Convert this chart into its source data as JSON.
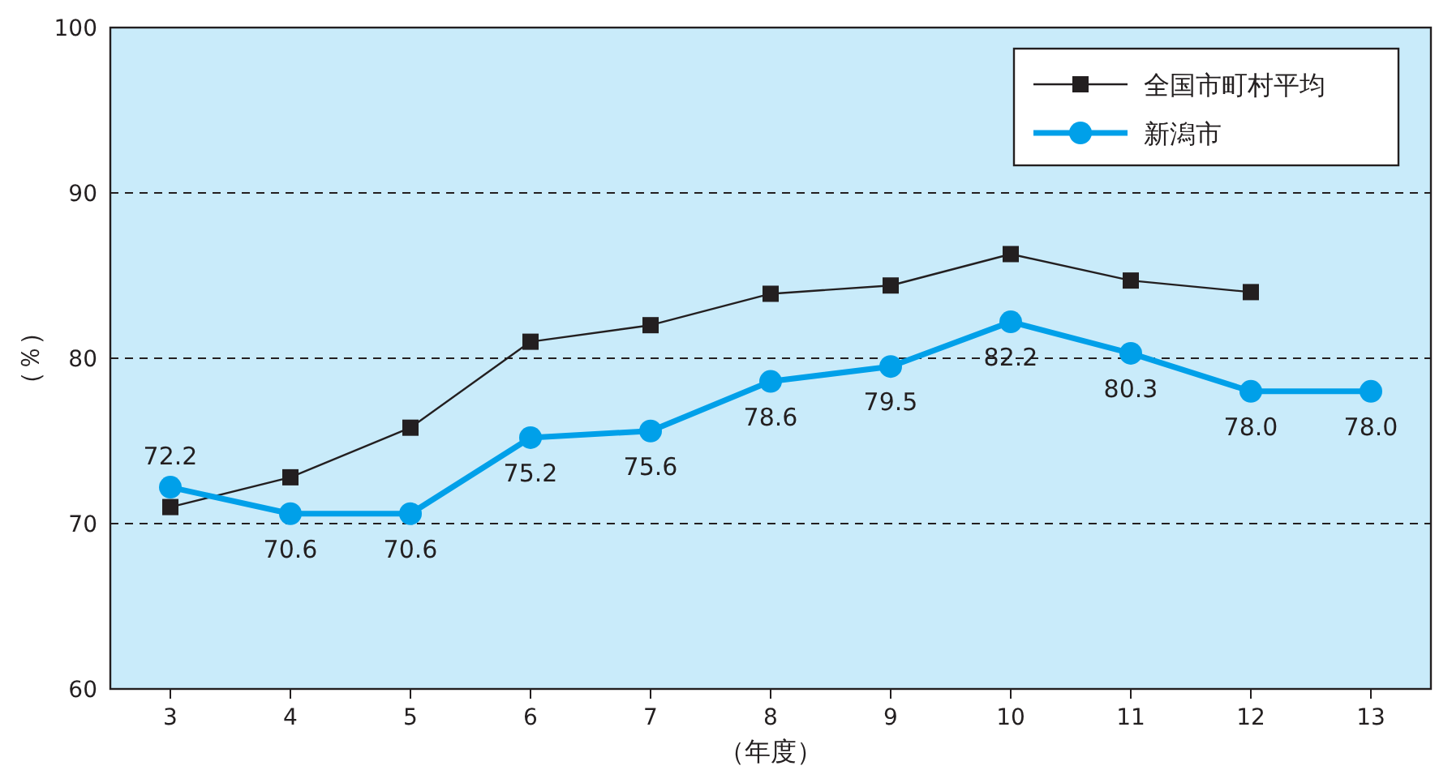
{
  "chart_data": {
    "type": "line",
    "xlabel": "（年度）",
    "ylabel": "（％）",
    "x": [
      3,
      4,
      5,
      6,
      7,
      8,
      9,
      10,
      11,
      12,
      13
    ],
    "xlim": [
      2.5,
      13.5
    ],
    "xticks": [
      3,
      4,
      5,
      6,
      7,
      8,
      9,
      10,
      11,
      12,
      13
    ],
    "ylim": [
      60,
      100
    ],
    "yticks": [
      60,
      70,
      80,
      90,
      100
    ],
    "grid": "y",
    "legend": "top right",
    "series": [
      {
        "name": "全国市町村平均",
        "color": "#231f20",
        "marker": "square",
        "values": [
          71.0,
          72.8,
          75.8,
          81.0,
          82.0,
          83.9,
          84.4,
          86.3,
          84.7,
          84.0,
          null
        ]
      },
      {
        "name": "新潟市",
        "color": "#00a0e9",
        "marker": "circle",
        "value_labels": [
          "72.2",
          "70.6",
          "70.6",
          "75.2",
          "75.6",
          "78.6",
          "79.5",
          "82.2",
          "80.3",
          "78.0",
          "78.0"
        ],
        "values": [
          72.2,
          70.6,
          70.6,
          75.2,
          75.6,
          78.6,
          79.5,
          82.2,
          80.3,
          78.0,
          78.0
        ]
      }
    ]
  }
}
